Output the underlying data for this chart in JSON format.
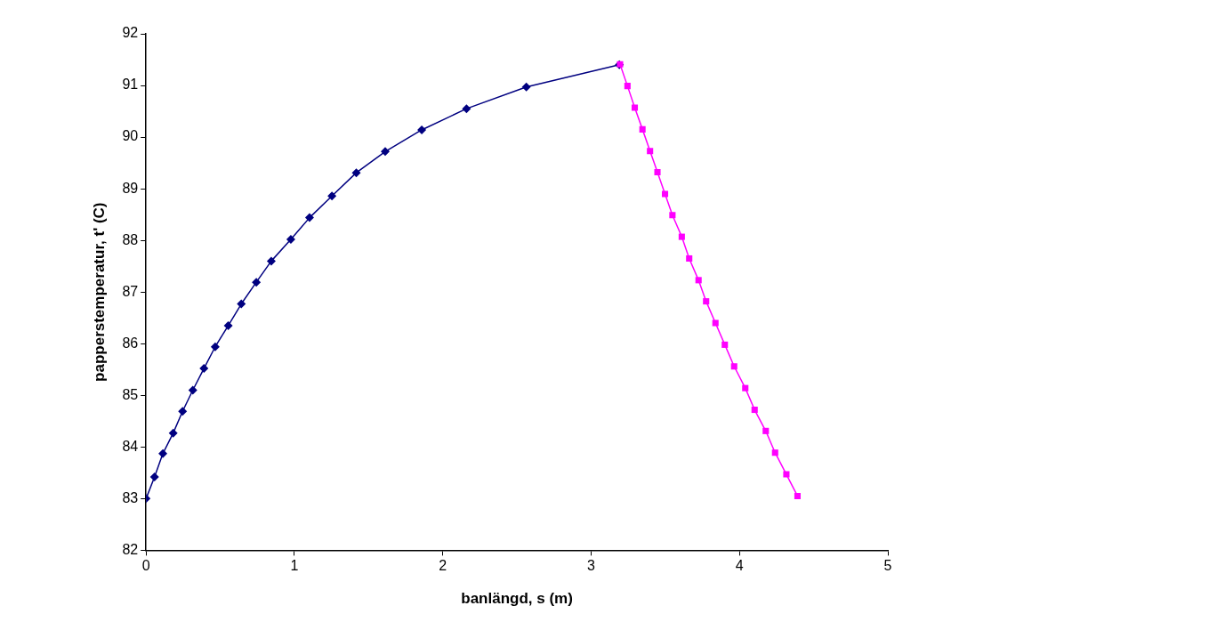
{
  "chart_data": {
    "type": "line",
    "xlabel": "banlängd, s (m)",
    "ylabel": "papperstemperatur, t' (C)",
    "xlim": [
      0,
      5
    ],
    "xticks": [
      0,
      1,
      2,
      3,
      4,
      5
    ],
    "ylim": [
      82,
      92
    ],
    "yticks": [
      82,
      83,
      84,
      85,
      86,
      87,
      88,
      89,
      90,
      91,
      92
    ],
    "grid": false,
    "legend": false,
    "line_style": "solid",
    "series": [
      {
        "color": "#000080",
        "marker": "diamond",
        "x": [
          0,
          0.057,
          0.113,
          0.183,
          0.246,
          0.315,
          0.39,
          0.466,
          0.554,
          0.642,
          0.743,
          0.844,
          0.976,
          1.102,
          1.253,
          1.417,
          1.612,
          1.858,
          2.16,
          2.563,
          3.19
        ],
        "values": [
          83.0,
          83.42,
          83.87,
          84.27,
          84.69,
          85.1,
          85.52,
          85.94,
          86.35,
          86.77,
          87.19,
          87.6,
          88.02,
          88.44,
          88.86,
          89.31,
          89.72,
          90.14,
          90.55,
          90.97,
          91.4
        ]
      },
      {
        "color": "#ff00ff",
        "marker": "square",
        "x": [
          3.195,
          3.245,
          3.294,
          3.346,
          3.397,
          3.447,
          3.498,
          3.548,
          3.611,
          3.661,
          3.724,
          3.775,
          3.838,
          3.901,
          3.964,
          4.039,
          4.102,
          4.177,
          4.24,
          4.316,
          4.391
        ],
        "values": [
          91.41,
          90.99,
          90.57,
          90.15,
          89.73,
          89.32,
          88.9,
          88.49,
          88.07,
          87.65,
          87.23,
          86.82,
          86.4,
          85.98,
          85.56,
          85.14,
          84.72,
          84.31,
          83.89,
          83.47,
          83.05
        ]
      }
    ]
  }
}
